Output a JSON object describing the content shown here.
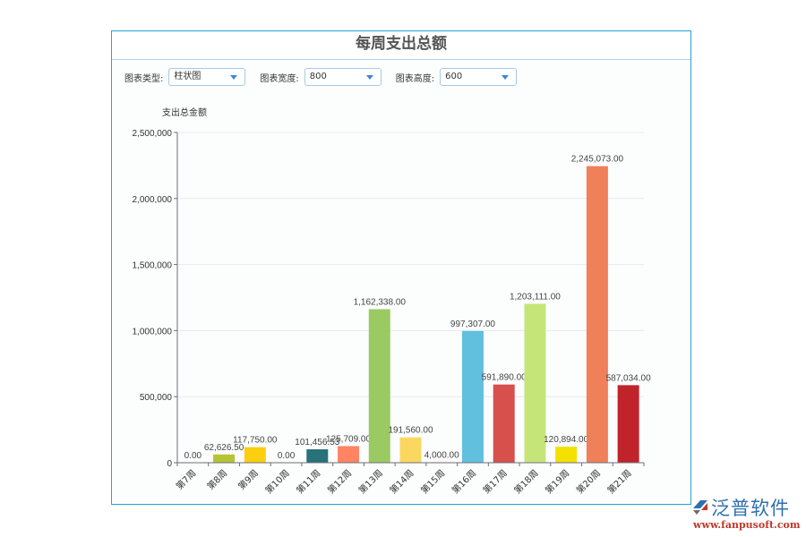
{
  "panel": {
    "title": "每周支出总额"
  },
  "toolbar": {
    "chart_type_label": "图表类型:",
    "chart_type_value": "柱状图",
    "chart_width_label": "图表宽度:",
    "chart_width_value": "800",
    "chart_height_label": "图表高度:",
    "chart_height_value": "600"
  },
  "logo": {
    "name_cn": "泛普软件",
    "url": "www.fanpusoft.com"
  },
  "chart_data": {
    "type": "bar",
    "title": "每周支出总额",
    "xlabel": "",
    "ylabel": "支出总金额",
    "ylim": [
      0,
      2500000
    ],
    "yticks": [
      0,
      500000,
      1000000,
      1500000,
      2000000,
      2500000
    ],
    "ytick_labels": [
      "0",
      "500,000",
      "1,000,000",
      "1,500,000",
      "2,000,000",
      "2,500,000"
    ],
    "grid": true,
    "legend": "none",
    "categories": [
      "第7周",
      "第8周",
      "第9周",
      "第10周",
      "第11周",
      "第12周",
      "第13周",
      "第14周",
      "第15周",
      "第16周",
      "第17周",
      "第18周",
      "第19周",
      "第20周",
      "第21周"
    ],
    "values": [
      0.0,
      62626.5,
      117750.0,
      0.0,
      101456.53,
      125709.0,
      1162338.0,
      191560.0,
      4000.0,
      997307.0,
      591890.0,
      1203111.0,
      120894.0,
      2245073.0,
      587034.0
    ],
    "value_labels": [
      "0.00",
      "62,626.50",
      "117,750.00",
      "0.00",
      "101,456.53",
      "125,709.00",
      "1,162,338.00",
      "191,560.00",
      "4,000.00",
      "997,307.00",
      "591,890.00",
      "1,203,111.00",
      "120,894.00",
      "2,245,073.00",
      "587,034.00"
    ],
    "colors": [
      "#c23531",
      "#b5c334",
      "#fcce10",
      "#e87c25",
      "#27727b",
      "#fe8463",
      "#9bca63",
      "#fad860",
      "#f3a43b",
      "#60c0dd",
      "#d7504b",
      "#c6e579",
      "#f4e001",
      "#f0805a",
      "#c1232b"
    ]
  }
}
